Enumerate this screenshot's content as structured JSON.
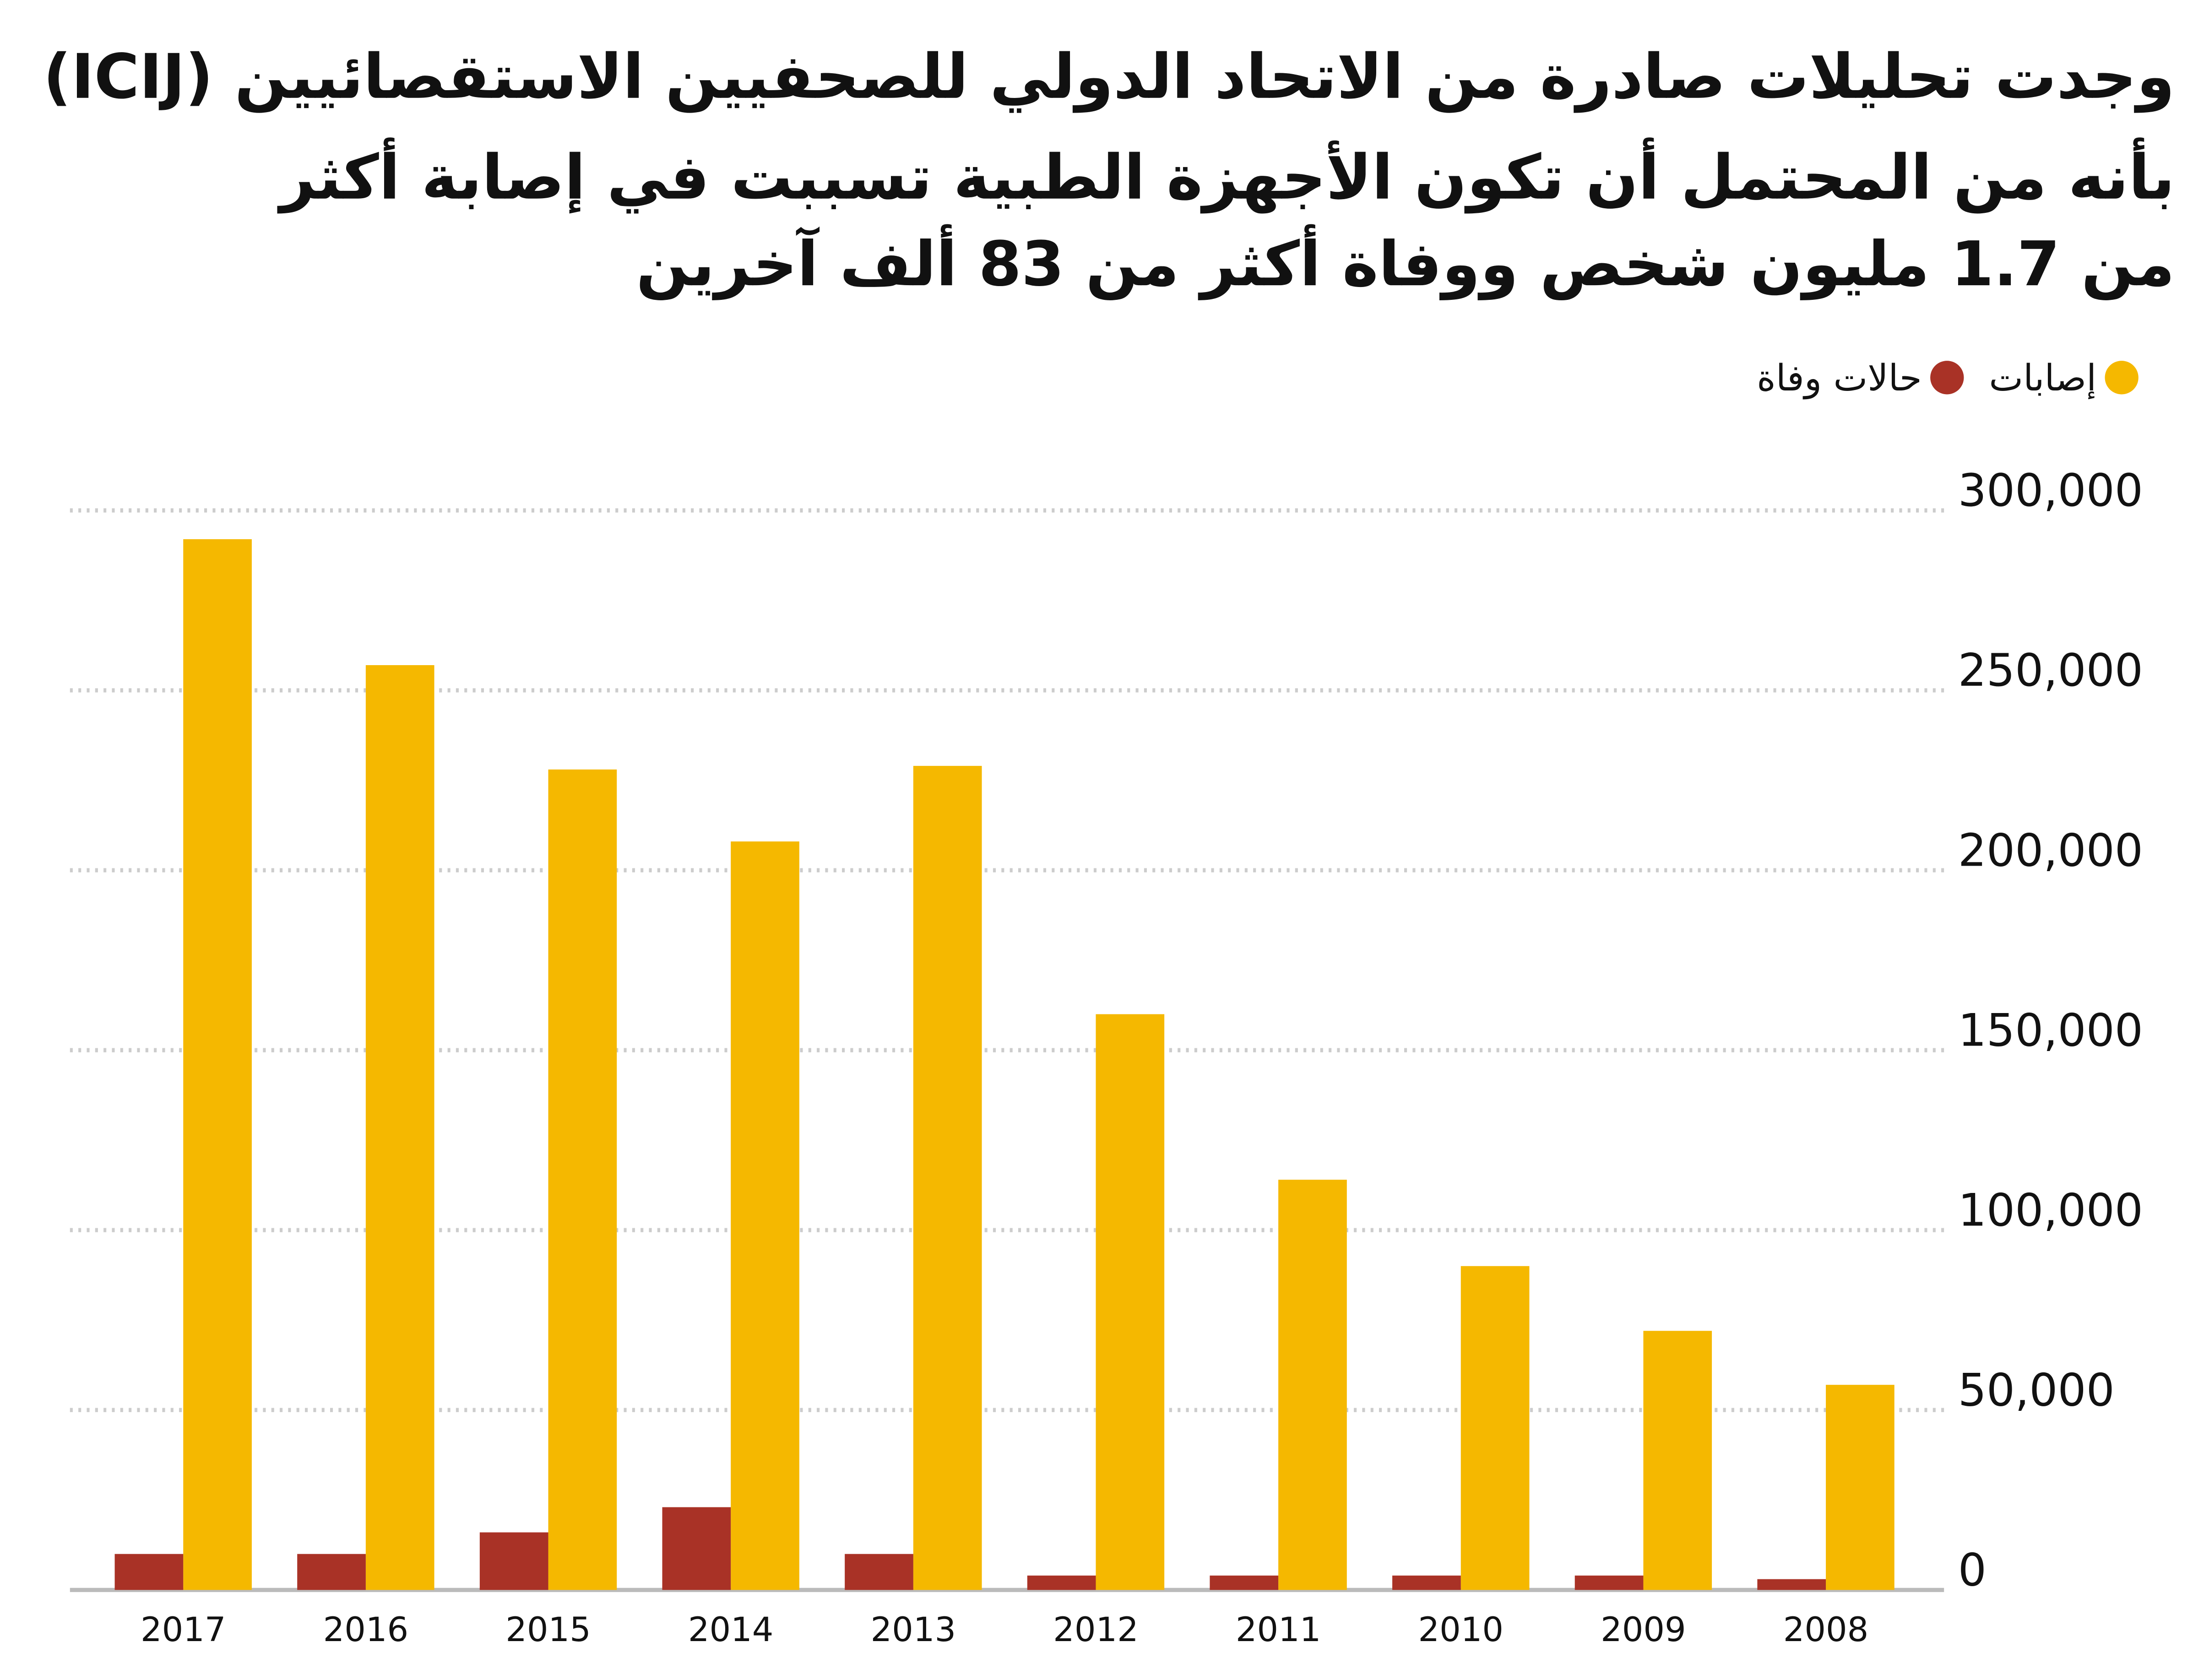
{
  "chart_data": {
    "type": "bar",
    "title": [
      "وجدت تحليلات صادرة من الاتحاد الدولي للصحفيين الاستقصائيين  (ICIJ)",
      "بأنه من المحتمل أن تكون الأجهزة الطبية تسببت في إصابة أكثر",
      "من 1.7 مليون شخص ووفاة أكثر من 83 ألف آخرين"
    ],
    "categories": [
      "2017",
      "2016",
      "2015",
      "2014",
      "2013",
      "2012",
      "2011",
      "2010",
      "2009",
      "2008"
    ],
    "series": [
      {
        "name": "إصابات",
        "color": "#f5b800",
        "values": [
          292000,
          257000,
          228000,
          208000,
          229000,
          160000,
          114000,
          90000,
          72000,
          57000
        ]
      },
      {
        "name": "حالات وفاة",
        "color": "#a93226",
        "values": [
          10000,
          10000,
          16000,
          23000,
          10000,
          4000,
          4000,
          4000,
          4000,
          3000
        ]
      }
    ],
    "ylim": [
      0,
      300000
    ],
    "yticks": [
      0,
      {
        "value": 50000,
        "label": "50,000"
      },
      {
        "value": 100000,
        "label": "100,000"
      },
      {
        "value": 150000,
        "label": "150,000"
      },
      {
        "value": 200000,
        "label": "200,000"
      },
      {
        "value": 250000,
        "label": "250,000"
      },
      {
        "value": 300000,
        "label": "300,000"
      }
    ],
    "grid": true
  }
}
